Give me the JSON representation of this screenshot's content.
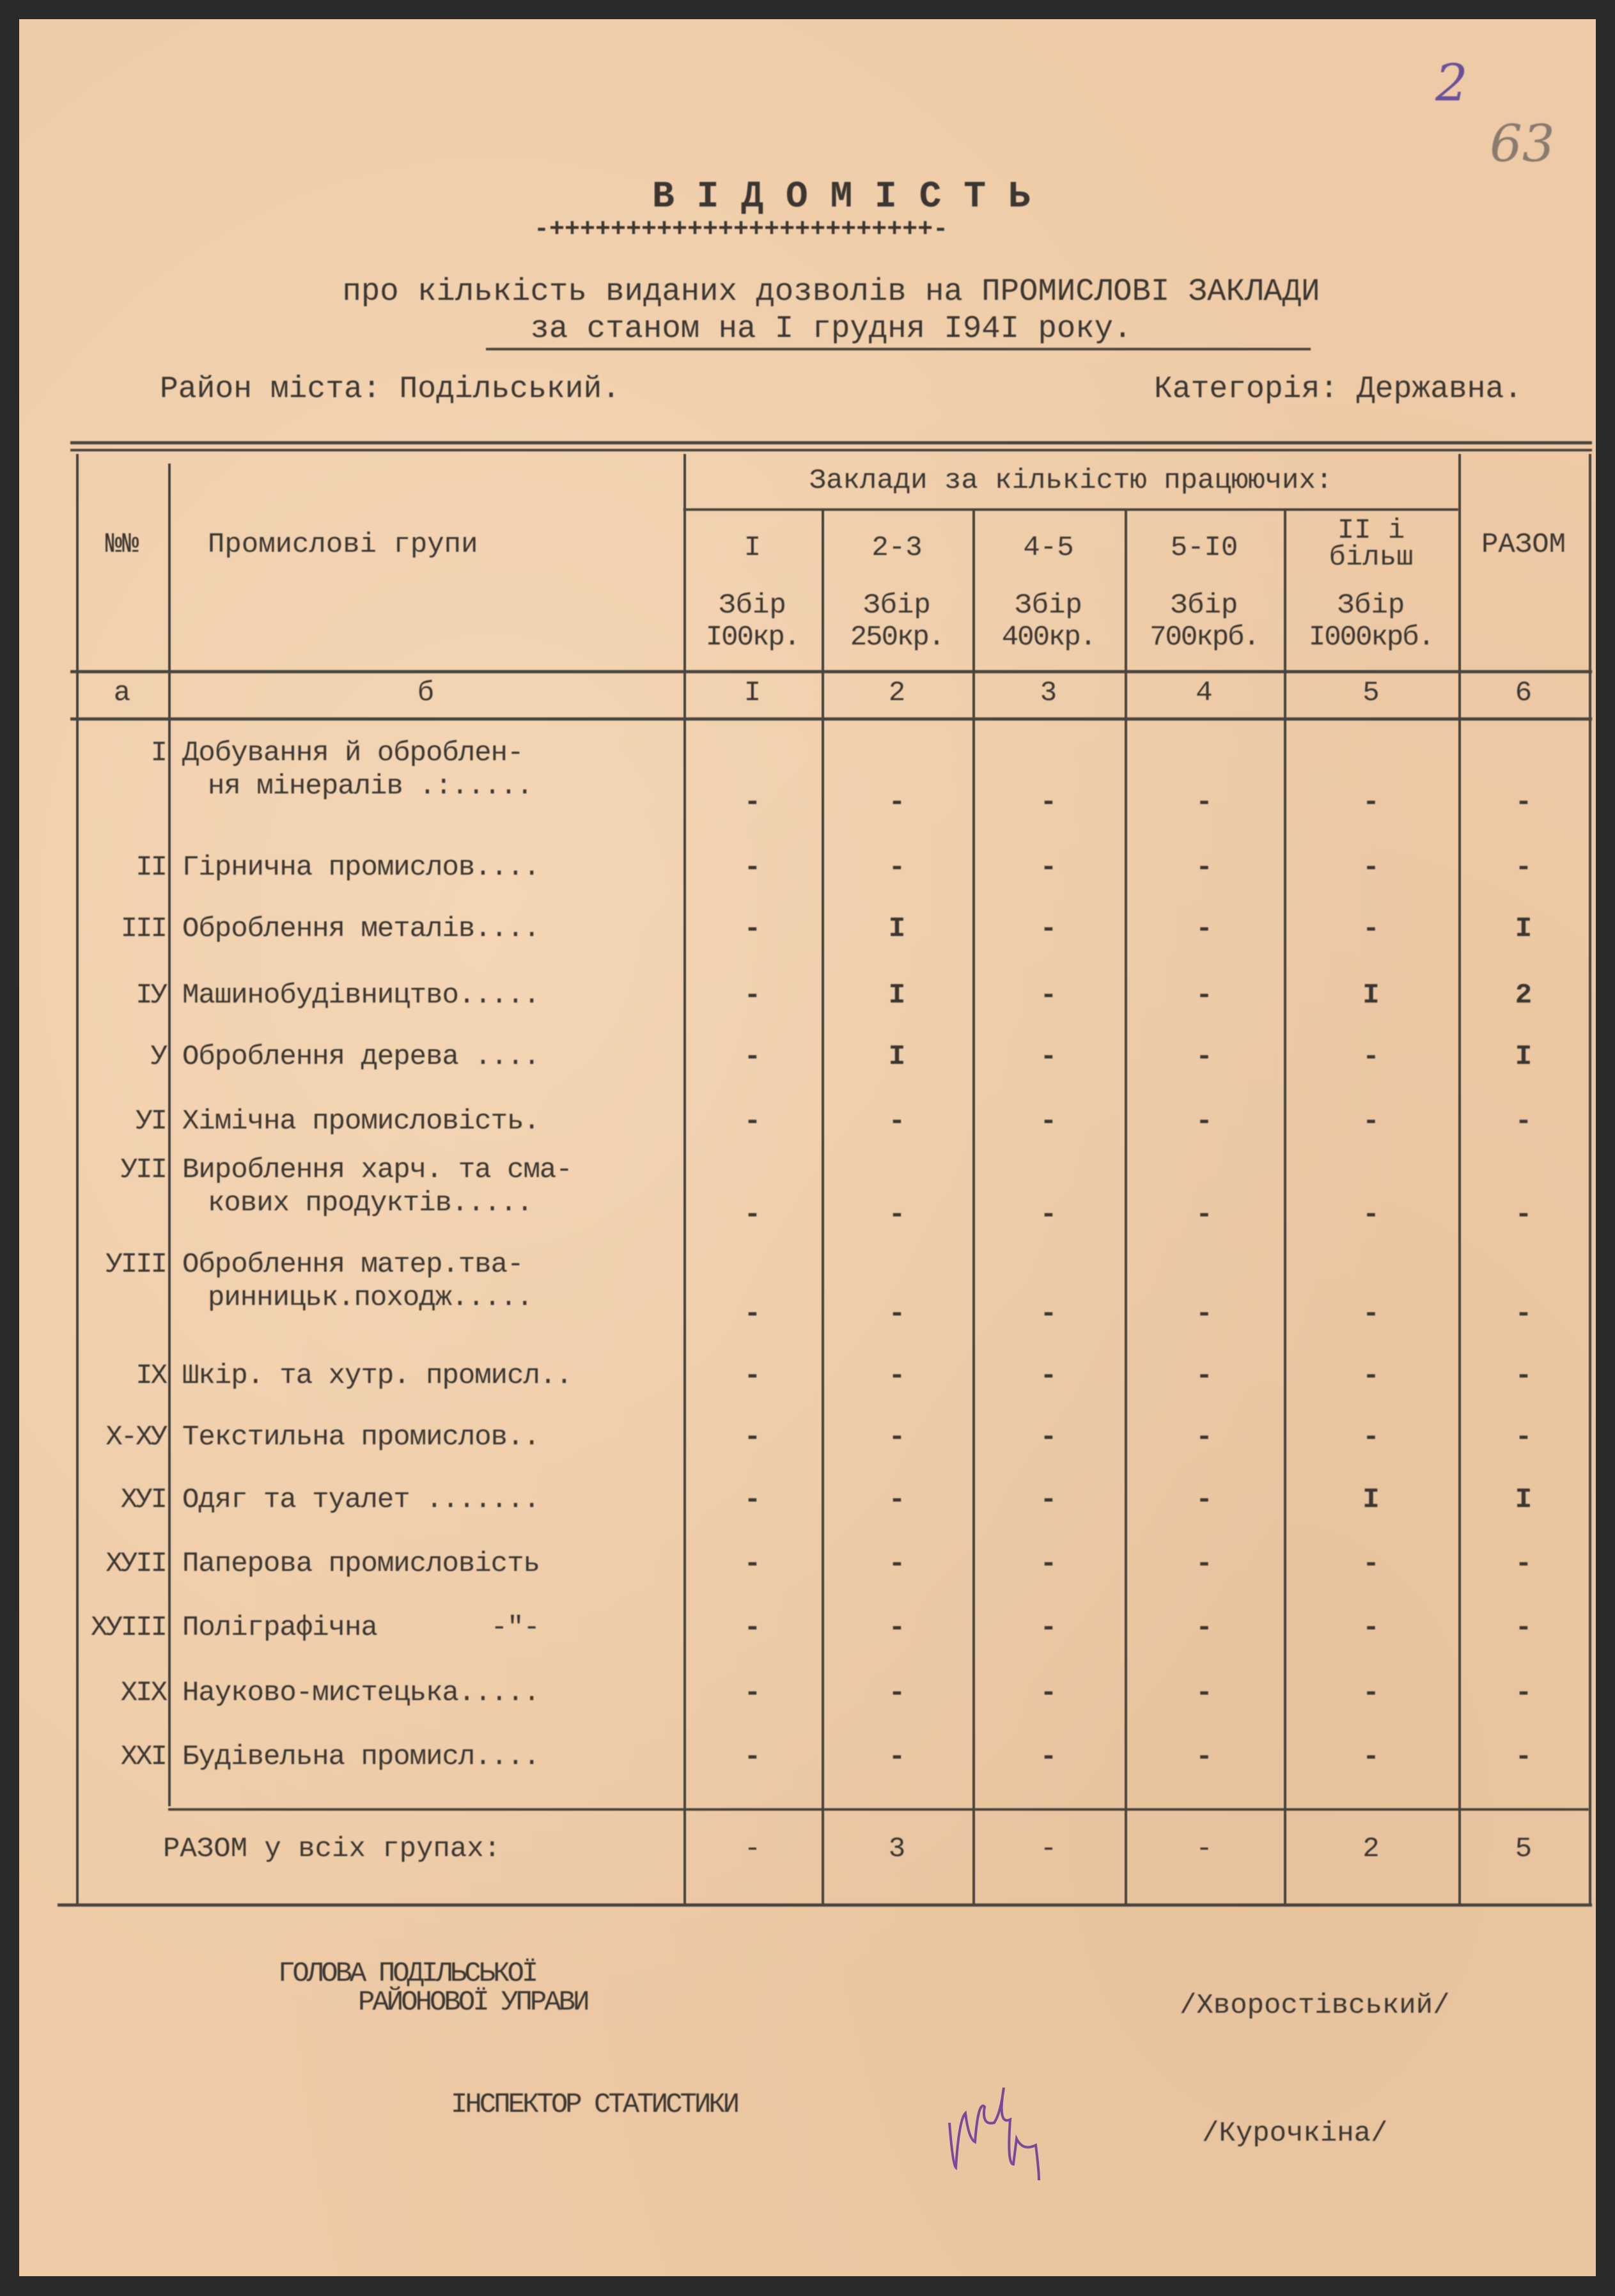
{
  "archive_marks": {
    "sheet_number": "2",
    "folio_number": "63"
  },
  "document": {
    "title": "В І Д О М І С Т Ь",
    "ornament": "-+++++++++++++++++++++++++-",
    "subtitle_line1": "про кількість виданих дозволів на ПРОМИСЛОВІ ЗАКЛАДИ",
    "subtitle_line2": "за станом на І грудня І94І року.",
    "district": "Район міста: Подільський.",
    "category": "Категорія: Державна."
  },
  "table": {
    "headers": {
      "num": "№№",
      "groups": "Промислові групи",
      "establishments": "Заклади за кількістю працюючих:",
      "total": "РАЗОМ",
      "columns": [
        {
          "range": "І",
          "fee_line1": "Збір",
          "fee_line2": "І00кр."
        },
        {
          "range": "2-3",
          "fee_line1": "Збір",
          "fee_line2": "250кр."
        },
        {
          "range": "4-5",
          "fee_line1": "Збір",
          "fee_line2": "400кр."
        },
        {
          "range": "5-І0",
          "fee_line1": "Збір",
          "fee_line2": "700крб."
        },
        {
          "range": "ІІ і більш",
          "fee_line1": "Збір",
          "fee_line2": "І000крб."
        }
      ]
    },
    "index_row": [
      "а",
      "б",
      "І",
      "2",
      "3",
      "4",
      "5",
      "6"
    ],
    "rows": [
      {
        "num": "І",
        "name": [
          "Добування й оброблен-",
          "ня мінералів .:....."
        ],
        "values": [
          "-",
          "-",
          "-",
          "-",
          "-",
          "-"
        ]
      },
      {
        "num": "ІІ",
        "name": [
          "Гірнична промислов...."
        ],
        "values": [
          "-",
          "-",
          "-",
          "-",
          "-",
          "-"
        ]
      },
      {
        "num": "ІІІ",
        "name": [
          "Оброблення металів...."
        ],
        "values": [
          "-",
          "І",
          "-",
          "-",
          "-",
          "І"
        ]
      },
      {
        "num": "ІУ",
        "name": [
          "Машинобудівництво....."
        ],
        "values": [
          "-",
          "І",
          "-",
          "-",
          "І",
          "2"
        ]
      },
      {
        "num": "У",
        "name": [
          "Оброблення дерева ...."
        ],
        "values": [
          "-",
          "І",
          "-",
          "-",
          "-",
          "І"
        ]
      },
      {
        "num": "УІ",
        "name": [
          "Хімічна промисловість."
        ],
        "values": [
          "-",
          "-",
          "-",
          "-",
          "-",
          "-"
        ]
      },
      {
        "num": "УІІ",
        "name": [
          "Вироблення харч. та сма-",
          "кових продуктів....."
        ],
        "values": [
          "-",
          "-",
          "-",
          "-",
          "-",
          "-"
        ]
      },
      {
        "num": "УІІІ",
        "name": [
          "Оброблення матер.тва-",
          "ринницьк.походж....."
        ],
        "values": [
          "-",
          "-",
          "-",
          "-",
          "-",
          "-"
        ]
      },
      {
        "num": "ІХ",
        "name": [
          "Шкір. та хутр. промисл.."
        ],
        "values": [
          "-",
          "-",
          "-",
          "-",
          "-",
          "-"
        ]
      },
      {
        "num": "Х-ХУ",
        "name": [
          "Текстильна промислов.."
        ],
        "values": [
          "-",
          "-",
          "-",
          "-",
          "-",
          "-"
        ]
      },
      {
        "num": "ХУІ",
        "name": [
          "Одяг та туалет ......."
        ],
        "values": [
          "-",
          "-",
          "-",
          "-",
          "І",
          "І"
        ]
      },
      {
        "num": "ХУІІ",
        "name": [
          "Паперова промисловість"
        ],
        "values": [
          "-",
          "-",
          "-",
          "-",
          "-",
          "-"
        ]
      },
      {
        "num": "ХУІІІ",
        "name": [
          "Поліграфічна       -\"-"
        ],
        "values": [
          "-",
          "-",
          "-",
          "-",
          "-",
          "-"
        ]
      },
      {
        "num": "ХІХ",
        "name": [
          "Науково-мистецька....."
        ],
        "values": [
          "-",
          "-",
          "-",
          "-",
          "-",
          "-"
        ]
      },
      {
        "num": "ХХІ",
        "name": [
          "Будівельна промисл...."
        ],
        "values": [
          "-",
          "-",
          "-",
          "-",
          "-",
          "-"
        ]
      }
    ],
    "total_row": {
      "label": "РАЗОМ у всіх групах:",
      "values": [
        "-",
        "3",
        "-",
        "-",
        "2",
        "5"
      ]
    }
  },
  "signatures": {
    "head_title_line1": "ГОЛОВА ПОДІЛЬСЬКОЇ",
    "head_title_line2": "РАЙОНОВОЇ УПРАВИ",
    "head_name": "/Хворостівський/",
    "inspector_title": "ІНСПЕКТОР СТАТИСТИКИ",
    "inspector_name": "/Курочкіна/",
    "signature_ink_color": "#7a4a9a"
  }
}
